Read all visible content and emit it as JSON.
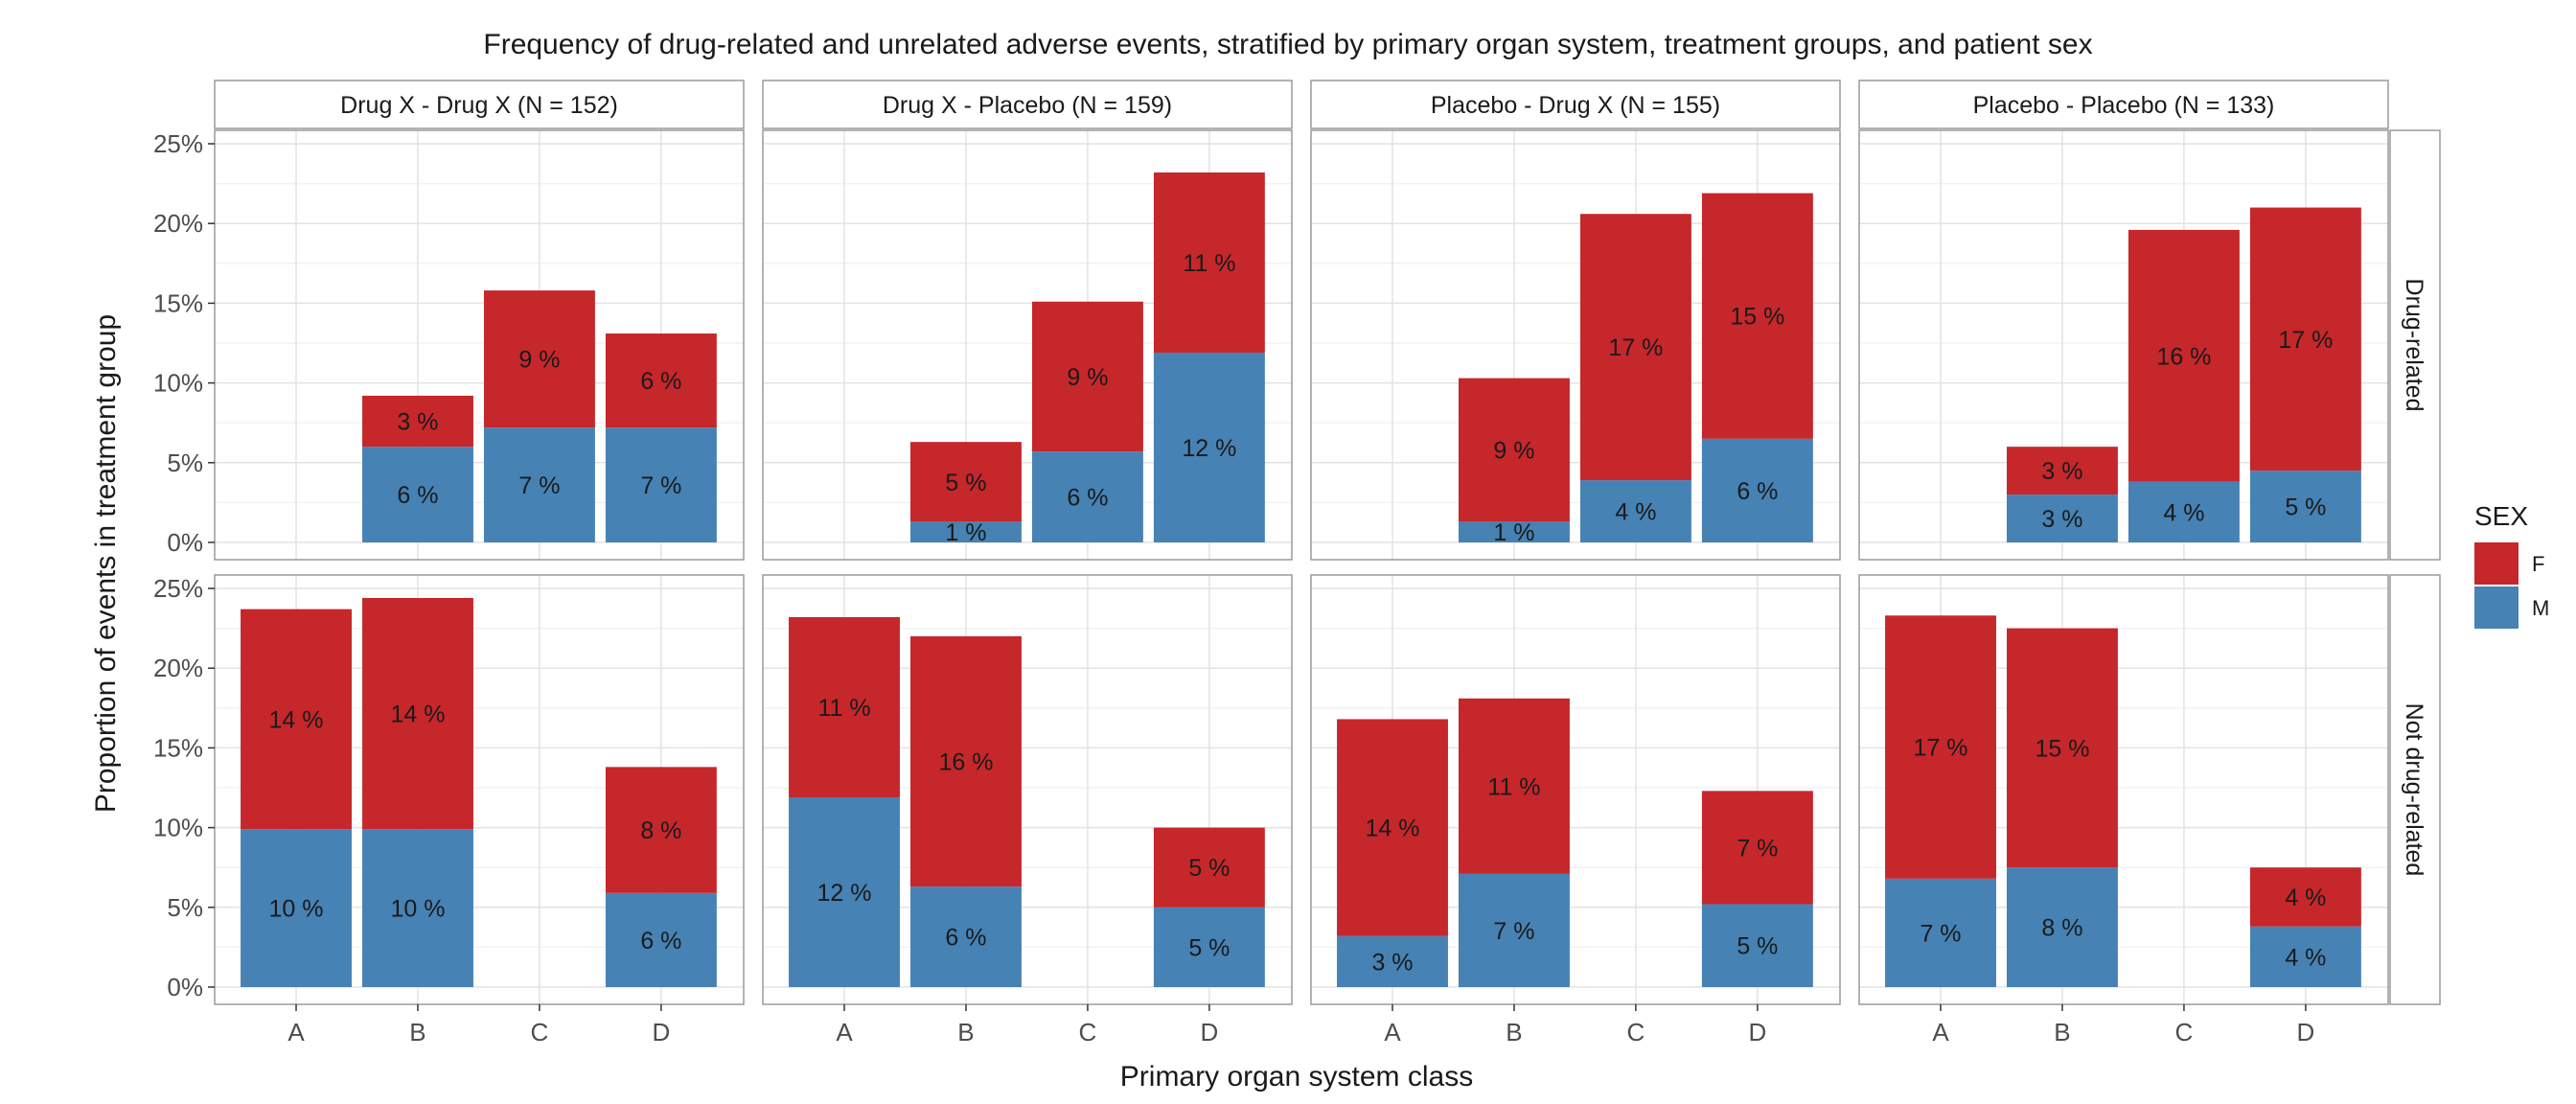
{
  "chart_data": {
    "type": "bar",
    "title": "Frequency of drug-related and unrelated adverse events, stratified by primary organ system, treatment groups, and patient sex",
    "xlabel": "Primary organ system class",
    "ylabel": "Proportion of events in treatment group",
    "categories": [
      "A",
      "B",
      "C",
      "D"
    ],
    "ylim": [
      0,
      0.25
    ],
    "y_ticks": [
      0,
      0.05,
      0.1,
      0.15,
      0.2,
      0.25
    ],
    "y_tick_labels": [
      "0%",
      "5%",
      "10%",
      "15%",
      "20%",
      "25%"
    ],
    "stacked": true,
    "grid": true,
    "legend": {
      "title": "SEX",
      "position": "right",
      "items": [
        {
          "name": "F",
          "color": "#C5272B"
        },
        {
          "name": "M",
          "color": "#4682B4"
        }
      ]
    },
    "facet_columns": [
      "Drug X - Drug X (N = 152)",
      "Drug X - Placebo (N = 159)",
      "Placebo - Drug X (N = 155)",
      "Placebo - Placebo (N = 133)"
    ],
    "facet_rows": [
      "Drug-related",
      "Not drug-related"
    ],
    "panels": [
      {
        "row": 0,
        "col": 0,
        "M": [
          null,
          0.06,
          0.072,
          0.072
        ],
        "F": [
          null,
          0.032,
          0.086,
          0.059
        ],
        "M_labels": [
          "",
          "6 %",
          "7 %",
          "7 %"
        ],
        "F_labels": [
          "",
          "3 %",
          "9 %",
          "6 %"
        ]
      },
      {
        "row": 0,
        "col": 1,
        "M": [
          null,
          0.013,
          0.057,
          0.119
        ],
        "F": [
          null,
          0.05,
          0.094,
          0.113
        ],
        "M_labels": [
          "",
          "1 %",
          "6 %",
          "12 %"
        ],
        "F_labels": [
          "",
          "5 %",
          "9 %",
          "11 %"
        ]
      },
      {
        "row": 0,
        "col": 2,
        "M": [
          null,
          0.013,
          0.039,
          0.065
        ],
        "F": [
          null,
          0.09,
          0.167,
          0.154
        ],
        "M_labels": [
          "",
          "1 %",
          "4 %",
          "6 %"
        ],
        "F_labels": [
          "",
          "9 %",
          "17 %",
          "15 %"
        ]
      },
      {
        "row": 0,
        "col": 3,
        "M": [
          null,
          0.03,
          0.038,
          0.045
        ],
        "F": [
          null,
          0.03,
          0.158,
          0.165
        ],
        "M_labels": [
          "",
          "3 %",
          "4 %",
          "5 %"
        ],
        "F_labels": [
          "",
          "3 %",
          "16 %",
          "17 %"
        ]
      },
      {
        "row": 1,
        "col": 0,
        "M": [
          0.099,
          0.099,
          null,
          0.059
        ],
        "F": [
          0.138,
          0.145,
          null,
          0.079
        ],
        "M_labels": [
          "10 %",
          "10 %",
          "",
          "6 %"
        ],
        "F_labels": [
          "14 %",
          "14 %",
          "",
          "8 %"
        ]
      },
      {
        "row": 1,
        "col": 1,
        "M": [
          0.119,
          0.063,
          null,
          0.05
        ],
        "F": [
          0.113,
          0.157,
          null,
          0.05
        ],
        "M_labels": [
          "12 %",
          "6 %",
          "",
          "5 %"
        ],
        "F_labels": [
          "11 %",
          "16 %",
          "",
          "5 %"
        ]
      },
      {
        "row": 1,
        "col": 2,
        "M": [
          0.032,
          0.071,
          null,
          0.052
        ],
        "F": [
          0.136,
          0.11,
          null,
          0.071
        ],
        "M_labels": [
          "3 %",
          "7 %",
          "",
          "5 %"
        ],
        "F_labels": [
          "14 %",
          "11 %",
          "",
          "7 %"
        ]
      },
      {
        "row": 1,
        "col": 3,
        "M": [
          0.068,
          0.075,
          null,
          0.038
        ],
        "F": [
          0.165,
          0.15,
          null,
          0.037
        ],
        "M_labels": [
          "7 %",
          "8 %",
          "",
          "4 %"
        ],
        "F_labels": [
          "17 %",
          "15 %",
          "",
          "4 %"
        ]
      }
    ]
  }
}
